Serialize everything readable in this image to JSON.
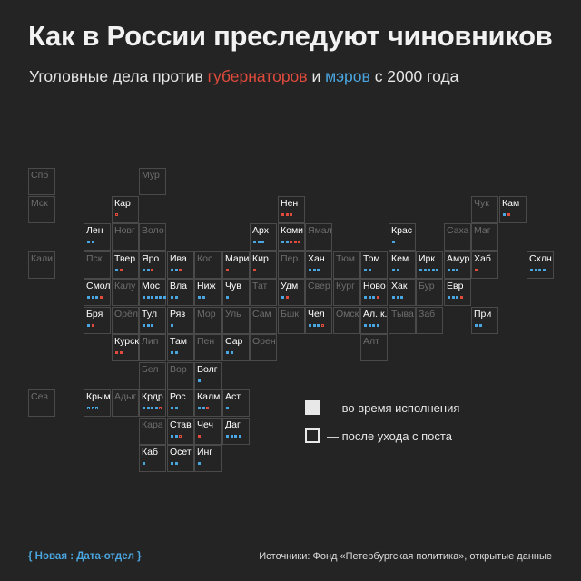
{
  "title": "Как в России преследуют чиновников",
  "subtitle": {
    "prefix": "Уголовные дела против ",
    "governors": "губернаторов",
    "middle": " и ",
    "mayors": "мэров",
    "suffix": " с 2000 года"
  },
  "legend": {
    "during_label": "— во время исполнения",
    "after_label": "— после ухода с поста"
  },
  "footer": {
    "brand": "{ Новая : Дата-отдел }",
    "sources": "Источники: Фонд «Петербургская политика», открытые данные"
  },
  "colors": {
    "governor": "#e04b3c",
    "mayor": "#4aa6e0",
    "empty_label": "#6e6e6e",
    "grid": "#4a4a4a"
  },
  "chart_data": {
    "type": "table",
    "cases_encoding": "g = governor, m = mayor; uppercase = during term (filled), lowercase = after leaving post (outline)",
    "regions": [
      {
        "code": "Спб",
        "col": 0,
        "row": 0,
        "cases": ""
      },
      {
        "code": "Мур",
        "col": 4,
        "row": 0,
        "cases": ""
      },
      {
        "code": "Мск",
        "col": 0,
        "row": 1,
        "cases": ""
      },
      {
        "code": "Кар",
        "col": 3,
        "row": 1,
        "cases": "g"
      },
      {
        "code": "Нен",
        "col": 9,
        "row": 1,
        "cases": "GGG"
      },
      {
        "code": "Чук",
        "col": 16,
        "row": 1,
        "cases": ""
      },
      {
        "code": "Кам",
        "col": 17,
        "row": 1,
        "cases": "MG"
      },
      {
        "code": "Лен",
        "col": 2,
        "row": 2,
        "cases": "MM"
      },
      {
        "code": "Новг",
        "col": 3,
        "row": 2,
        "cases": ""
      },
      {
        "code": "Воло",
        "col": 4,
        "row": 2,
        "cases": ""
      },
      {
        "code": "Арх",
        "col": 8,
        "row": 2,
        "cases": "MMM"
      },
      {
        "code": "Коми",
        "col": 9,
        "row": 2,
        "cases": "MMgGG"
      },
      {
        "code": "Ямал",
        "col": 10,
        "row": 2,
        "cases": ""
      },
      {
        "code": "Крас",
        "col": 13,
        "row": 2,
        "cases": "M"
      },
      {
        "code": "Саха",
        "col": 15,
        "row": 2,
        "cases": ""
      },
      {
        "code": "Маг",
        "col": 16,
        "row": 2,
        "cases": ""
      },
      {
        "code": "Кали",
        "col": 0,
        "row": 3,
        "cases": ""
      },
      {
        "code": "Пск",
        "col": 2,
        "row": 3,
        "cases": ""
      },
      {
        "code": "Твер",
        "col": 3,
        "row": 3,
        "cases": "MG"
      },
      {
        "code": "Яро",
        "col": 4,
        "row": 3,
        "cases": "MMG"
      },
      {
        "code": "Ива",
        "col": 5,
        "row": 3,
        "cases": "MMG"
      },
      {
        "code": "Кос",
        "col": 6,
        "row": 3,
        "cases": ""
      },
      {
        "code": "Мари",
        "col": 7,
        "row": 3,
        "cases": "G"
      },
      {
        "code": "Кир",
        "col": 8,
        "row": 3,
        "cases": "G"
      },
      {
        "code": "Пер",
        "col": 9,
        "row": 3,
        "cases": ""
      },
      {
        "code": "Хан",
        "col": 10,
        "row": 3,
        "cases": "MMM"
      },
      {
        "code": "Тюм",
        "col": 11,
        "row": 3,
        "cases": ""
      },
      {
        "code": "Том",
        "col": 12,
        "row": 3,
        "cases": "MM"
      },
      {
        "code": "Кем",
        "col": 13,
        "row": 3,
        "cases": "MM"
      },
      {
        "code": "Ирк",
        "col": 14,
        "row": 3,
        "cases": "MMMMM"
      },
      {
        "code": "Амур",
        "col": 15,
        "row": 3,
        "cases": "MMM"
      },
      {
        "code": "Хаб",
        "col": 16,
        "row": 3,
        "cases": "G"
      },
      {
        "code": "Схлн",
        "col": 18,
        "row": 3,
        "cases": "MMMM"
      },
      {
        "code": "Смол",
        "col": 2,
        "row": 4,
        "cases": "MMMG"
      },
      {
        "code": "Калу",
        "col": 3,
        "row": 4,
        "cases": ""
      },
      {
        "code": "Мос",
        "col": 4,
        "row": 4,
        "cases": "MMMMMM"
      },
      {
        "code": "Вла",
        "col": 5,
        "row": 4,
        "cases": "MM"
      },
      {
        "code": "Ниж",
        "col": 6,
        "row": 4,
        "cases": "MM"
      },
      {
        "code": "Чув",
        "col": 7,
        "row": 4,
        "cases": "M"
      },
      {
        "code": "Тат",
        "col": 8,
        "row": 4,
        "cases": ""
      },
      {
        "code": "Удм",
        "col": 9,
        "row": 4,
        "cases": "MG"
      },
      {
        "code": "Свер",
        "col": 10,
        "row": 4,
        "cases": ""
      },
      {
        "code": "Кург",
        "col": 11,
        "row": 4,
        "cases": ""
      },
      {
        "code": "Ново",
        "col": 12,
        "row": 4,
        "cases": "MMMG"
      },
      {
        "code": "Хак",
        "col": 13,
        "row": 4,
        "cases": "MMM"
      },
      {
        "code": "Бур",
        "col": 14,
        "row": 4,
        "cases": ""
      },
      {
        "code": "Евр",
        "col": 15,
        "row": 4,
        "cases": "MMMG"
      },
      {
        "code": "Бря",
        "col": 2,
        "row": 5,
        "cases": "MG"
      },
      {
        "code": "Орёл",
        "col": 3,
        "row": 5,
        "cases": ""
      },
      {
        "code": "Тул",
        "col": 4,
        "row": 5,
        "cases": "MMM"
      },
      {
        "code": "Ряз",
        "col": 5,
        "row": 5,
        "cases": "M"
      },
      {
        "code": "Мор",
        "col": 6,
        "row": 5,
        "cases": ""
      },
      {
        "code": "Уль",
        "col": 7,
        "row": 5,
        "cases": ""
      },
      {
        "code": "Сам",
        "col": 8,
        "row": 5,
        "cases": ""
      },
      {
        "code": "Бшк",
        "col": 9,
        "row": 5,
        "cases": ""
      },
      {
        "code": "Чел",
        "col": 10,
        "row": 5,
        "cases": "MMMg"
      },
      {
        "code": "Омск",
        "col": 11,
        "row": 5,
        "cases": ""
      },
      {
        "code": "Ал. к.",
        "col": 12,
        "row": 5,
        "cases": "MMMM"
      },
      {
        "code": "Тыва",
        "col": 13,
        "row": 5,
        "cases": ""
      },
      {
        "code": "Заб",
        "col": 14,
        "row": 5,
        "cases": ""
      },
      {
        "code": "При",
        "col": 16,
        "row": 5,
        "cases": "MM"
      },
      {
        "code": "Курск",
        "col": 3,
        "row": 6,
        "cases": "GG"
      },
      {
        "code": "Лип",
        "col": 4,
        "row": 6,
        "cases": ""
      },
      {
        "code": "Там",
        "col": 5,
        "row": 6,
        "cases": "MM"
      },
      {
        "code": "Пен",
        "col": 6,
        "row": 6,
        "cases": ""
      },
      {
        "code": "Сар",
        "col": 7,
        "row": 6,
        "cases": "MM"
      },
      {
        "code": "Орен",
        "col": 8,
        "row": 6,
        "cases": ""
      },
      {
        "code": "Алт",
        "col": 12,
        "row": 6,
        "cases": ""
      },
      {
        "code": "Бел",
        "col": 4,
        "row": 7,
        "cases": ""
      },
      {
        "code": "Вор",
        "col": 5,
        "row": 7,
        "cases": ""
      },
      {
        "code": "Волг",
        "col": 6,
        "row": 7,
        "cases": "M"
      },
      {
        "code": "Сев",
        "col": 0,
        "row": 8,
        "cases": ""
      },
      {
        "code": "Крым",
        "col": 2,
        "row": 8,
        "cases": "mmm"
      },
      {
        "code": "Адыг",
        "col": 3,
        "row": 8,
        "cases": ""
      },
      {
        "code": "Крдр",
        "col": 4,
        "row": 8,
        "cases": "MMMMg"
      },
      {
        "code": "Рос",
        "col": 5,
        "row": 8,
        "cases": "MM"
      },
      {
        "code": "Калм",
        "col": 6,
        "row": 8,
        "cases": "MMG"
      },
      {
        "code": "Аст",
        "col": 7,
        "row": 8,
        "cases": "M"
      },
      {
        "code": "Кара",
        "col": 4,
        "row": 9,
        "cases": ""
      },
      {
        "code": "Став",
        "col": 5,
        "row": 9,
        "cases": "MMg"
      },
      {
        "code": "Чеч",
        "col": 6,
        "row": 9,
        "cases": "G"
      },
      {
        "code": "Даг",
        "col": 7,
        "row": 9,
        "cases": "MMMM"
      },
      {
        "code": "Каб",
        "col": 4,
        "row": 10,
        "cases": "M"
      },
      {
        "code": "Осет",
        "col": 5,
        "row": 10,
        "cases": "MM"
      },
      {
        "code": "Инг",
        "col": 6,
        "row": 10,
        "cases": "M"
      }
    ]
  }
}
